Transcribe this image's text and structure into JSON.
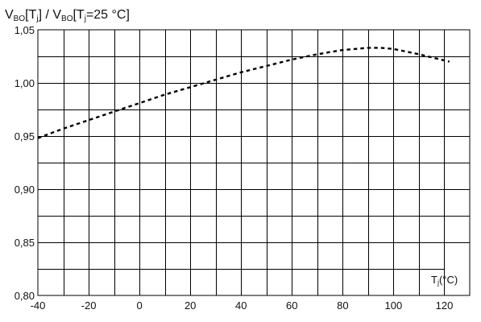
{
  "chart_data": {
    "type": "line",
    "title": "",
    "ylabel": {
      "parts": [
        {
          "text": "V",
          "sub": false
        },
        {
          "text": "BO",
          "sub": true
        },
        {
          "text": "[T",
          "sub": false
        },
        {
          "text": "j",
          "sub": true
        },
        {
          "text": "] / V",
          "sub": false
        },
        {
          "text": "BO",
          "sub": true
        },
        {
          "text": "[T",
          "sub": false
        },
        {
          "text": "j",
          "sub": true
        },
        {
          "text": "=25 °C]",
          "sub": false
        }
      ]
    },
    "xlabel": {
      "parts": [
        {
          "text": "T",
          "sub": false
        },
        {
          "text": "j",
          "sub": true
        },
        {
          "text": "(°C)",
          "sub": false
        }
      ]
    },
    "xlim": [
      -40,
      130
    ],
    "ylim": [
      0.8,
      1.05
    ],
    "x_ticks": [
      -40,
      -20,
      0,
      20,
      40,
      60,
      80,
      100,
      120
    ],
    "x_tick_labels": [
      "-40",
      "-20",
      "0",
      "20",
      "40",
      "60",
      "80",
      "100",
      "120"
    ],
    "y_ticks": [
      0.8,
      0.85,
      0.9,
      0.95,
      1.0,
      1.05
    ],
    "y_tick_labels": [
      "0,80",
      "0,85",
      "0,90",
      "0,95",
      "1,00",
      "1,05"
    ],
    "grid": true,
    "series": [
      {
        "style": "dashed",
        "color": "#000000",
        "x": [
          -40,
          -30,
          -20,
          -10,
          0,
          10,
          20,
          30,
          40,
          50,
          60,
          70,
          80,
          85,
          90,
          95,
          100,
          110,
          122
        ],
        "y": [
          0.948,
          0.957,
          0.965,
          0.973,
          0.981,
          0.989,
          0.996,
          1.003,
          1.01,
          1.016,
          1.022,
          1.027,
          1.031,
          1.032,
          1.033,
          1.033,
          1.032,
          1.027,
          1.02
        ]
      }
    ]
  }
}
